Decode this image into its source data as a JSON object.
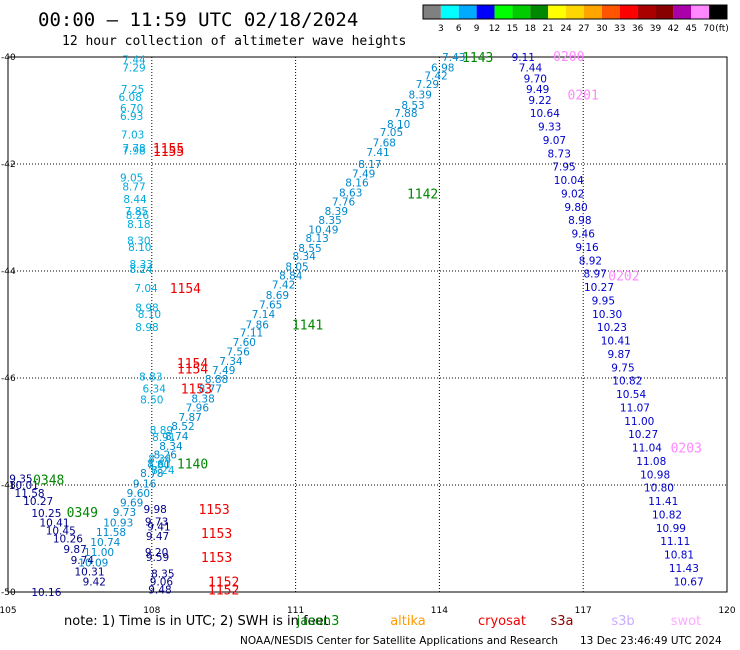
{
  "chart_data": {
    "type": "scatter",
    "title": "00:00 — 11:59 UTC 02/18/2024",
    "subtitle": "12 hour collection of altimeter wave heights",
    "xlim": [
      105,
      120
    ],
    "ylim": [
      -50,
      -40
    ],
    "x_ticks": [
      105,
      108,
      111,
      114,
      117,
      120
    ],
    "y_ticks": [
      -40,
      -42,
      -44,
      -46,
      -48,
      -50
    ],
    "x_tick_labels": [
      "105",
      "108",
      "111",
      "114",
      "117",
      "120"
    ],
    "y_tick_labels": [
      "-40",
      "-42",
      "-44",
      "-46",
      "-48",
      "-50"
    ],
    "grid": true,
    "color_scale": {
      "unit": "(ft)",
      "labels": [
        "3",
        "6",
        "9",
        "12",
        "15",
        "18",
        "21",
        "24",
        "27",
        "30",
        "33",
        "36",
        "39",
        "42",
        "45",
        "70"
      ],
      "colors": [
        "#808080",
        "#00ffff",
        "#00aaff",
        "#0000ff",
        "#00ff00",
        "#00cc00",
        "#008800",
        "#ffff00",
        "#ffd700",
        "#ffa500",
        "#ff5500",
        "#ff0000",
        "#aa0000",
        "#880000",
        "#aa00aa",
        "#ff88ff",
        "#000000"
      ]
    },
    "series": [
      {
        "name": "jason3",
        "color": "#0088cc",
        "points": [
          [
            114.3,
            -40,
            "7.43"
          ],
          [
            114.07,
            -40.2,
            "6.98"
          ],
          [
            113.93,
            -40.35,
            "7.42"
          ],
          [
            113.75,
            -40.5,
            "7.29"
          ],
          [
            113.6,
            -40.7,
            "8.39"
          ],
          [
            113.45,
            -40.9,
            "8.53"
          ],
          [
            113.3,
            -41.05,
            "7.88"
          ],
          [
            113.15,
            -41.25,
            "8.10"
          ],
          [
            113.0,
            -41.4,
            "7.05"
          ],
          [
            112.85,
            -41.6,
            "7.68"
          ],
          [
            112.72,
            -41.78,
            "7.41"
          ],
          [
            112.55,
            -42.0,
            "8.17"
          ],
          [
            112.42,
            -42.18,
            "7.49"
          ],
          [
            112.28,
            -42.35,
            "8.16"
          ],
          [
            112.15,
            -42.53,
            "8.63"
          ],
          [
            112.0,
            -42.7,
            "7.76"
          ],
          [
            111.85,
            -42.88,
            "8.39"
          ],
          [
            111.72,
            -43.05,
            "8.35"
          ],
          [
            111.58,
            -43.22,
            "10.49"
          ],
          [
            111.45,
            -43.38,
            "8.13"
          ],
          [
            111.3,
            -43.57,
            "8.55"
          ],
          [
            111.18,
            -43.72,
            "8.34"
          ],
          [
            111.03,
            -43.92,
            "8.05"
          ],
          [
            110.9,
            -44.08,
            "8.84"
          ],
          [
            110.75,
            -44.25,
            "7.42"
          ],
          [
            110.62,
            -44.45,
            "8.69"
          ],
          [
            110.48,
            -44.63,
            "7.65"
          ],
          [
            110.33,
            -44.8,
            "7.14"
          ],
          [
            110.2,
            -45.0,
            "7.86"
          ],
          [
            110.08,
            -45.15,
            "7.11"
          ],
          [
            109.93,
            -45.33,
            "7.60"
          ],
          [
            109.8,
            -45.5,
            "7.56"
          ],
          [
            109.65,
            -45.68,
            "7.34"
          ],
          [
            109.5,
            -45.85,
            "7.49"
          ],
          [
            109.35,
            -46.02,
            "8.88"
          ],
          [
            109.22,
            -46.2,
            "8.77"
          ],
          [
            109.07,
            -46.38,
            "8.38"
          ],
          [
            108.95,
            -46.55,
            "7.96"
          ],
          [
            108.8,
            -46.73,
            "7.87"
          ],
          [
            108.65,
            -46.9,
            "8.52"
          ],
          [
            108.52,
            -47.08,
            "8.74"
          ],
          [
            108.4,
            -47.27,
            "8.34"
          ],
          [
            108.28,
            -47.43,
            "8.26"
          ],
          [
            108.15,
            -47.6,
            "8.61"
          ],
          [
            108.0,
            -47.78,
            "8.78"
          ],
          [
            107.85,
            -47.97,
            "9.16"
          ],
          [
            107.72,
            -48.15,
            "9.60"
          ],
          [
            107.58,
            -48.33,
            "9.69"
          ],
          [
            107.43,
            -48.5,
            "9.73"
          ],
          [
            107.3,
            -48.7,
            "10.93"
          ],
          [
            107.15,
            -48.88,
            "11.58"
          ],
          [
            107.03,
            -49.07,
            "10.74"
          ],
          [
            106.9,
            -49.25,
            "11.00"
          ],
          [
            106.78,
            -49.45,
            "10.09"
          ]
        ]
      },
      {
        "name": "altika",
        "color": "#0000cc",
        "points": [
          [
            115.75,
            -40,
            "9.11"
          ],
          [
            115.9,
            -40.2,
            "7.44"
          ],
          [
            116.0,
            -40.4,
            "9.70"
          ],
          [
            116.05,
            -40.6,
            "9.49"
          ],
          [
            116.1,
            -40.8,
            "9.22"
          ],
          [
            116.2,
            -41.05,
            "10.64"
          ],
          [
            116.3,
            -41.3,
            "9.33"
          ],
          [
            116.4,
            -41.55,
            "9.07"
          ],
          [
            116.5,
            -41.8,
            "8.73"
          ],
          [
            116.6,
            -42.05,
            "7.95"
          ],
          [
            116.7,
            -42.3,
            "10.04"
          ],
          [
            116.78,
            -42.55,
            "9.02"
          ],
          [
            116.85,
            -42.8,
            "9.80"
          ],
          [
            116.93,
            -43.05,
            "8.98"
          ],
          [
            117.0,
            -43.3,
            "9.46"
          ],
          [
            117.08,
            -43.55,
            "9.16"
          ],
          [
            117.15,
            -43.8,
            "8.92"
          ],
          [
            117.25,
            -44.05,
            "8.97"
          ],
          [
            117.33,
            -44.3,
            "10.27"
          ],
          [
            117.42,
            -44.55,
            "9.95"
          ],
          [
            117.5,
            -44.8,
            "10.30"
          ],
          [
            117.6,
            -45.05,
            "10.23"
          ],
          [
            117.68,
            -45.3,
            "10.41"
          ],
          [
            117.75,
            -45.55,
            "9.87"
          ],
          [
            117.83,
            -45.8,
            "9.75"
          ],
          [
            117.92,
            -46.05,
            "10.82"
          ],
          [
            118.0,
            -46.3,
            "10.54"
          ],
          [
            118.08,
            -46.55,
            "11.07"
          ],
          [
            118.17,
            -46.8,
            "11.00"
          ],
          [
            118.25,
            -47.05,
            "10.27"
          ],
          [
            118.33,
            -47.3,
            "11.04"
          ],
          [
            118.42,
            -47.55,
            "11.08"
          ],
          [
            118.5,
            -47.8,
            "10.98"
          ],
          [
            118.58,
            -48.05,
            "10.80"
          ],
          [
            118.67,
            -48.3,
            "11.41"
          ],
          [
            118.75,
            -48.55,
            "10.82"
          ],
          [
            118.83,
            -48.8,
            "10.99"
          ],
          [
            118.92,
            -49.05,
            "11.11"
          ],
          [
            119.0,
            -49.3,
            "10.81"
          ],
          [
            119.1,
            -49.55,
            "11.43"
          ],
          [
            119.2,
            -49.8,
            "10.67"
          ]
        ]
      },
      {
        "name": "cryosat",
        "color": "#00aadd",
        "points": [
          [
            107.63,
            -40.05,
            "7.44"
          ],
          [
            107.63,
            -40.2,
            "7.29"
          ],
          [
            107.6,
            -40.6,
            "7.25"
          ],
          [
            107.55,
            -40.75,
            "6.08"
          ],
          [
            107.58,
            -40.95,
            "6.70"
          ],
          [
            107.58,
            -41.1,
            "6.93"
          ],
          [
            107.6,
            -41.45,
            "7.03"
          ],
          [
            107.63,
            -41.7,
            "7.78"
          ],
          [
            107.63,
            -41.75,
            "7.98"
          ],
          [
            107.58,
            -42.25,
            "9.05"
          ],
          [
            107.63,
            -42.42,
            "8.77"
          ],
          [
            107.65,
            -42.65,
            "8.44"
          ],
          [
            107.68,
            -42.88,
            "7.85"
          ],
          [
            107.7,
            -42.95,
            "8.26"
          ],
          [
            107.73,
            -43.12,
            "8.18"
          ],
          [
            107.73,
            -43.43,
            "8.30"
          ],
          [
            107.75,
            -43.55,
            "8.10"
          ],
          [
            107.78,
            -43.87,
            "8.33"
          ],
          [
            107.78,
            -43.96,
            "8.24"
          ],
          [
            107.88,
            -44.32,
            "7.04"
          ],
          [
            107.9,
            -44.68,
            "8.98"
          ],
          [
            107.95,
            -44.8,
            "8.10"
          ],
          [
            107.9,
            -45.05,
            "8.98"
          ],
          [
            107.98,
            -45.97,
            "8.83"
          ],
          [
            108.05,
            -46.2,
            "6.34"
          ],
          [
            108.0,
            -46.4,
            "8.50"
          ],
          [
            108.2,
            -46.97,
            "8.89"
          ],
          [
            108.25,
            -47.1,
            "8.91"
          ],
          [
            108.17,
            -47.5,
            "8.34"
          ],
          [
            108.14,
            -47.62,
            "7.80"
          ],
          [
            108.23,
            -47.72,
            "8.24"
          ]
        ]
      },
      {
        "name": "s3a",
        "color": "#000088",
        "points": [
          [
            108.07,
            -48.45,
            "9.98"
          ],
          [
            108.1,
            -48.68,
            "9.73"
          ],
          [
            108.15,
            -48.78,
            "9.41"
          ],
          [
            108.12,
            -48.95,
            "9.47"
          ],
          [
            108.1,
            -49.25,
            "9.20"
          ],
          [
            108.12,
            -49.35,
            "9.59"
          ],
          [
            108.23,
            -49.65,
            "8.35"
          ],
          [
            108.2,
            -49.8,
            "9.06"
          ],
          [
            108.17,
            -49.95,
            "9.48"
          ],
          [
            105.27,
            -47.88,
            "9.35"
          ],
          [
            105.33,
            -48.0,
            "10.01"
          ],
          [
            105.45,
            -48.15,
            "11.58"
          ],
          [
            105.63,
            -48.3,
            "10.27"
          ],
          [
            105.8,
            -48.52,
            "10.25"
          ],
          [
            105.97,
            -48.7,
            "10.41"
          ],
          [
            106.1,
            -48.85,
            "10.45"
          ],
          [
            106.25,
            -49.0,
            "10.26"
          ],
          [
            106.4,
            -49.2,
            "9.87"
          ],
          [
            106.55,
            -49.4,
            "9.74"
          ],
          [
            106.7,
            -49.62,
            "10.31"
          ],
          [
            106.8,
            -49.8,
            "9.42"
          ],
          [
            105.8,
            -50.0,
            "10.16"
          ]
        ]
      }
    ],
    "pass_labels": [
      {
        "text": "1143",
        "x": 114.8,
        "y": -40.0,
        "color": "#008800"
      },
      {
        "text": "0200",
        "x": 116.7,
        "y": -39.98,
        "color": "#ff88ff"
      },
      {
        "text": "0201",
        "x": 117.0,
        "y": -40.7,
        "color": "#ff88ff"
      },
      {
        "text": "1155",
        "x": 108.35,
        "y": -41.7,
        "color": "#ee0000"
      },
      {
        "text": "1155",
        "x": 108.35,
        "y": -41.76,
        "color": "#ee0000"
      },
      {
        "text": "1142",
        "x": 113.65,
        "y": -42.55,
        "color": "#008800"
      },
      {
        "text": "1154",
        "x": 108.7,
        "y": -44.32,
        "color": "#ee0000"
      },
      {
        "text": "0202",
        "x": 117.85,
        "y": -44.08,
        "color": "#ff88ff"
      },
      {
        "text": "1141",
        "x": 111.25,
        "y": -45.0,
        "color": "#008800"
      },
      {
        "text": "1154",
        "x": 108.85,
        "y": -45.72,
        "color": "#ee0000"
      },
      {
        "text": "1154",
        "x": 108.85,
        "y": -45.82,
        "color": "#ee0000"
      },
      {
        "text": "1153",
        "x": 108.93,
        "y": -46.2,
        "color": "#ee0000"
      },
      {
        "text": "1140",
        "x": 108.85,
        "y": -47.6,
        "color": "#008800"
      },
      {
        "text": "0203",
        "x": 119.15,
        "y": -47.3,
        "color": "#ff88ff"
      },
      {
        "text": "0348",
        "x": 105.85,
        "y": -47.9,
        "color": "#008800"
      },
      {
        "text": "0349",
        "x": 106.55,
        "y": -48.5,
        "color": "#008800"
      },
      {
        "text": "1153",
        "x": 109.3,
        "y": -48.45,
        "color": "#ee0000"
      },
      {
        "text": "1153",
        "x": 109.35,
        "y": -48.9,
        "color": "#ee0000"
      },
      {
        "text": "1153",
        "x": 109.35,
        "y": -49.35,
        "color": "#ee0000"
      },
      {
        "text": "1152",
        "x": 109.5,
        "y": -49.8,
        "color": "#ee0000"
      },
      {
        "text": "1152",
        "x": 109.5,
        "y": -49.95,
        "color": "#ee0000"
      }
    ]
  },
  "footer": {
    "note": "note: 1) Time is in UTC; 2) SWH is in feet",
    "legend": [
      {
        "name": "jason3",
        "color": "#008800"
      },
      {
        "name": "altika",
        "color": "#ff9900"
      },
      {
        "name": "cryosat",
        "color": "#ee0000"
      },
      {
        "name": "s3a",
        "color": "#880000"
      },
      {
        "name": "s3b",
        "color": "#ccaaff"
      },
      {
        "name": "swot",
        "color": "#ffaaff"
      }
    ],
    "credit": "NOAA/NESDIS Center for Satellite Applications and Research",
    "timestamp": "13 Dec 23:46:49 UTC 2024"
  }
}
